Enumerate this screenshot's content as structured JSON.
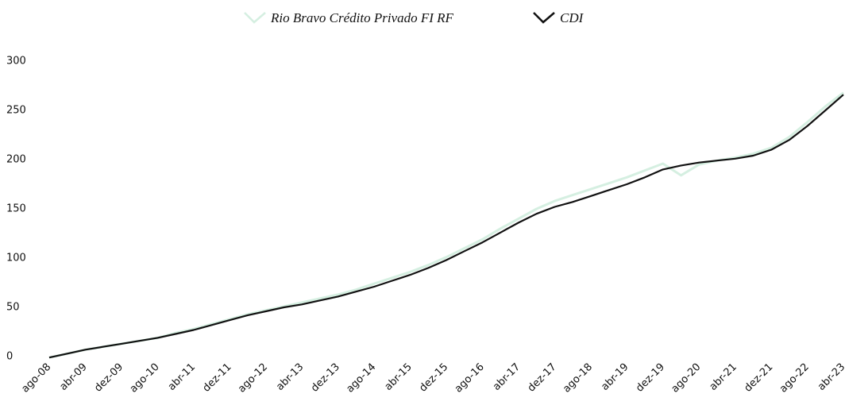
{
  "chart_data": {
    "type": "line",
    "categories": [
      "ago-08",
      null,
      "abr-09",
      null,
      "dez-09",
      null,
      "ago-10",
      null,
      "abr-11",
      null,
      "dez-11",
      null,
      "ago-12",
      null,
      "abr-13",
      null,
      "dez-13",
      null,
      "ago-14",
      null,
      "abr-15",
      null,
      "dez-15",
      null,
      "ago-16",
      null,
      "abr-17",
      null,
      "dez-17",
      null,
      "ago-18",
      null,
      "abr-19",
      null,
      "dez-19",
      null,
      "ago-20",
      null,
      "abr-21",
      null,
      "dez-21",
      null,
      "ago-22",
      null,
      "abr-23"
    ],
    "series": [
      {
        "name": "Rio Bravo Crédito Privado FI RF",
        "color": "#d5efe1",
        "values": [
          -1,
          3,
          7,
          10,
          13,
          16,
          19,
          24,
          28,
          33,
          38,
          43,
          47,
          51,
          55,
          59,
          63,
          68,
          74,
          80,
          86,
          93,
          101,
          110,
          119,
          130,
          140,
          150,
          158,
          164,
          170,
          176,
          182,
          189,
          196,
          184,
          195,
          199,
          202,
          206,
          212,
          223,
          238,
          254,
          268
        ]
      },
      {
        "name": "CDI",
        "color": "#111111",
        "values": [
          -1,
          3,
          7,
          10,
          13,
          16,
          19,
          23,
          27,
          32,
          37,
          42,
          46,
          50,
          53,
          57,
          61,
          66,
          71,
          77,
          83,
          90,
          98,
          107,
          116,
          126,
          136,
          145,
          152,
          157,
          163,
          169,
          175,
          182,
          190,
          194,
          197,
          199,
          201,
          204,
          210,
          220,
          234,
          250,
          266
        ]
      }
    ],
    "ylim": [
      0,
      300
    ],
    "yticks": [
      0,
      50,
      100,
      150,
      200,
      250,
      300
    ],
    "grid": false
  }
}
